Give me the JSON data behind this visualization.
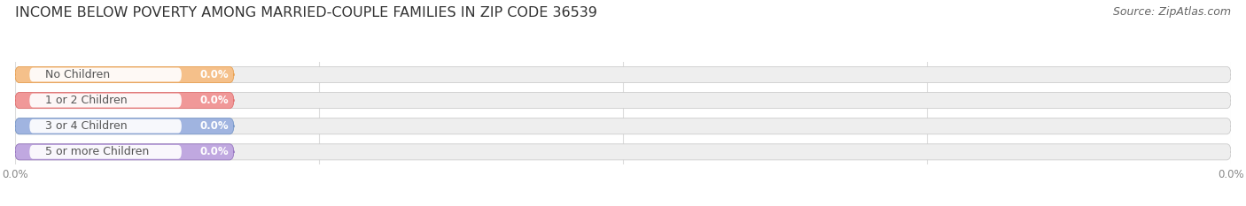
{
  "title": "INCOME BELOW POVERTY AMONG MARRIED-COUPLE FAMILIES IN ZIP CODE 36539",
  "source": "Source: ZipAtlas.com",
  "categories": [
    "No Children",
    "1 or 2 Children",
    "3 or 4 Children",
    "5 or more Children"
  ],
  "values": [
    0.0,
    0.0,
    0.0,
    0.0
  ],
  "bar_colors": [
    "#f5c08a",
    "#f09898",
    "#a0b4e0",
    "#c0a8e0"
  ],
  "bar_bg_color": "#eeeeee",
  "bar_border_color": "#cccccc",
  "circle_colors": [
    "#e8a050",
    "#e07070",
    "#7898c8",
    "#9878c0"
  ],
  "value_text_colors": [
    "#e8a050",
    "#e07070",
    "#7898c8",
    "#9878c0"
  ],
  "xlim": [
    0,
    100
  ],
  "title_fontsize": 11.5,
  "source_fontsize": 9,
  "bar_height": 0.62,
  "bg_color": "#ffffff",
  "grid_color": "#dddddd",
  "tick_label_color": "#888888",
  "category_label_color": "#555555",
  "category_fontsize": 9,
  "value_fontsize": 8.5
}
